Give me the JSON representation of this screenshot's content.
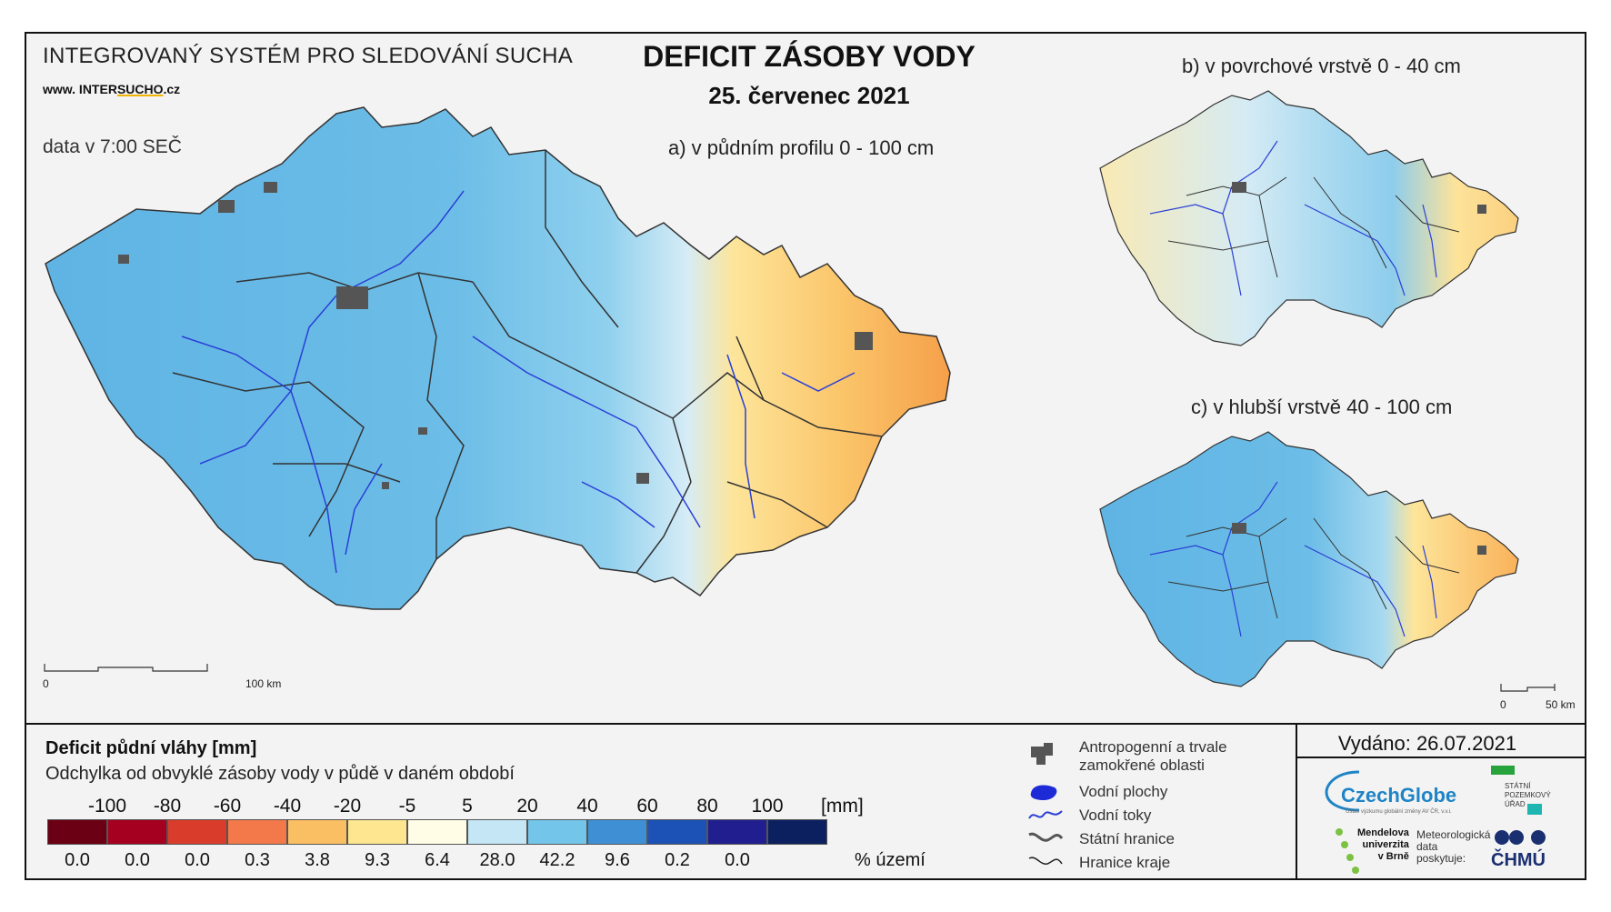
{
  "header": {
    "system_title": "INTEGROVANÝ SYSTÉM PRO SLEDOVÁNÍ SUCHA",
    "website_prefix": "www. INTER",
    "website_highlight": "SUCHO",
    "website_suffix": ".cz",
    "data_time": "data v 7:00 SEČ",
    "main_title": "DEFICIT ZÁSOBY VODY",
    "date": "25. červenec 2021"
  },
  "maps": {
    "a_label": "a) v půdním profilu 0 - 100 cm",
    "b_label": "b) v povrchové vrstvě 0 - 40 cm",
    "c_label": "c) v hlubší vrstvě 40 - 100 cm",
    "scale_main_start": "0",
    "scale_main_end": "100 km",
    "scale_small_start": "0",
    "scale_small_end": "50 km"
  },
  "legend": {
    "title": "Deficit půdní vláhy  [mm]",
    "subtitle": "Odchylka od obvyklé zásoby vody v půdě v daném období",
    "unit": "[mm]",
    "percent_label": "% území",
    "breaks": [
      "-100",
      "-80",
      "-60",
      "-40",
      "-20",
      "-5",
      "5",
      "20",
      "40",
      "60",
      "80",
      "100"
    ],
    "classes": [
      {
        "color": "#6b0015",
        "percent": "0.0"
      },
      {
        "color": "#a5001f",
        "percent": "0.0"
      },
      {
        "color": "#d93c2b",
        "percent": "0.0"
      },
      {
        "color": "#f4794a",
        "percent": "0.3"
      },
      {
        "color": "#fbbf63",
        "percent": "3.8"
      },
      {
        "color": "#fde68f",
        "percent": "9.3"
      },
      {
        "color": "#fffde5",
        "percent": "6.4"
      },
      {
        "color": "#c4e6f5",
        "percent": "28.0"
      },
      {
        "color": "#74c5ea",
        "percent": "42.2"
      },
      {
        "color": "#3e8fd4",
        "percent": "9.6"
      },
      {
        "color": "#1c52b5",
        "percent": "0.2"
      },
      {
        "color": "#211f8f",
        "percent": "0.0"
      },
      {
        "color": "#0c2060",
        "percent": ""
      }
    ]
  },
  "symbols": {
    "anthropogenic_1": "Antropogenní a trvale",
    "anthropogenic_2": "zamokřené oblasti",
    "water_bodies": "Vodní plochy",
    "water_courses": "Vodní toky",
    "state_border": "Státní hranice",
    "region_border": "Hranice kraje"
  },
  "footer": {
    "issued": "Vydáno: 26.07.2021",
    "czechglobe": "CzechGlobe",
    "czechglobe_sub": "Ústav výzkumu globální změny AV ČR, v.v.i.",
    "spu_1": "STÁTNÍ",
    "spu_2": "POZEMKOVÝ",
    "spu_3": "ÚŘAD",
    "mendel_1": "Mendelova",
    "mendel_2": "univerzita",
    "mendel_3": "v Brně",
    "met_1": "Meteorologická",
    "met_2": "data",
    "met_3": "poskytuje:",
    "chmu": "ČHMÚ"
  },
  "colors": {
    "frame": "#111111",
    "background": "#f3f3f3",
    "river": "#2a3fd6",
    "urban": "#555555"
  }
}
